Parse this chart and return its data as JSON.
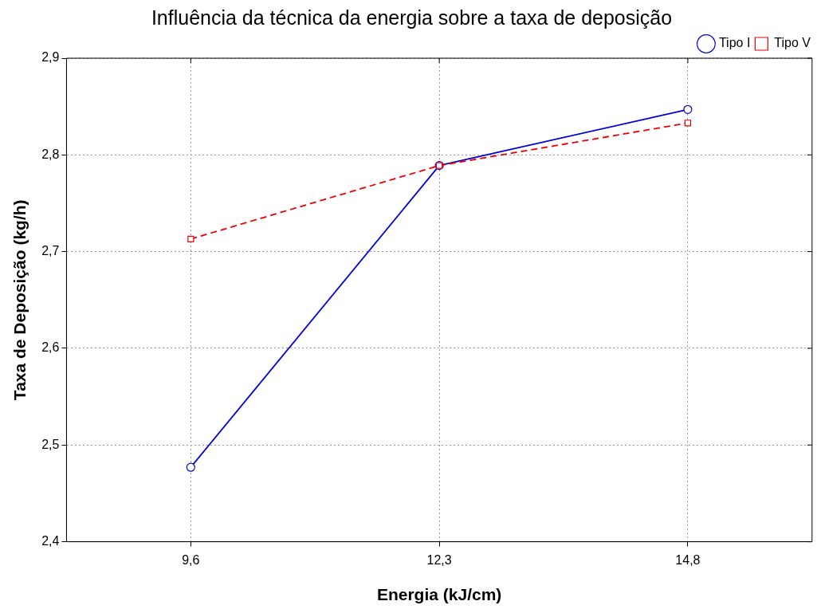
{
  "chart_data": {
    "type": "line",
    "title": "Influência da técnica da energia sobre a taxa de deposição",
    "xlabel": "Energia (kJ/cm)",
    "ylabel": "Taxa de Deposição (kg/h)",
    "categories": [
      "9,6",
      "12,3",
      "14,8"
    ],
    "series": [
      {
        "name": "Tipo I",
        "color": "#0000dd",
        "values": [
          2.477,
          2.789,
          2.847
        ],
        "marker": "circle",
        "line_style": "solid"
      },
      {
        "name": "Tipo V",
        "color": "#ee0000",
        "values": [
          2.713,
          2.789,
          2.833
        ],
        "marker": "square",
        "line_style": "dashed"
      }
    ],
    "ylim": [
      2.4,
      2.9
    ],
    "yticks": [
      {
        "value": 2.4,
        "label": "2,4"
      },
      {
        "value": 2.5,
        "label": "2,5"
      },
      {
        "value": 2.6,
        "label": "2,6"
      },
      {
        "value": 2.7,
        "label": "2,7"
      },
      {
        "value": 2.8,
        "label": "2,8"
      },
      {
        "value": 2.9,
        "label": "2,9"
      }
    ],
    "grid": true,
    "legend": "top right"
  }
}
